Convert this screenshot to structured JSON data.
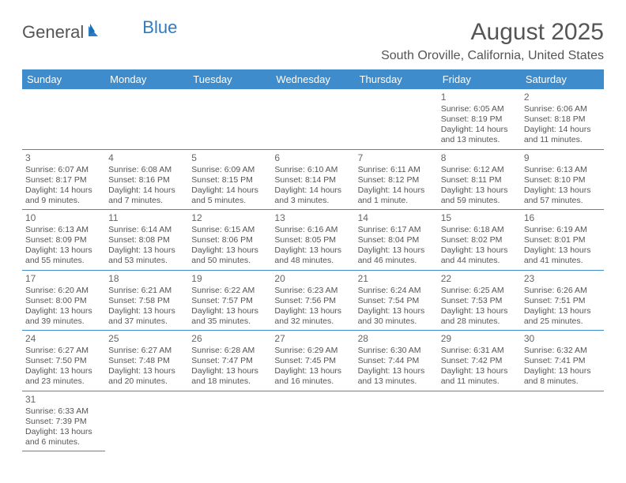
{
  "logo": {
    "part1": "General",
    "part2": "Blue"
  },
  "title": "August 2025",
  "location": "South Oroville, California, United States",
  "headers": [
    "Sunday",
    "Monday",
    "Tuesday",
    "Wednesday",
    "Thursday",
    "Friday",
    "Saturday"
  ],
  "colors": {
    "header_bg": "#3f8ccc",
    "header_text": "#ffffff",
    "border": "#3f8ccc",
    "text": "#555555",
    "logo_blue": "#2f7ac0"
  },
  "weeks": [
    [
      null,
      null,
      null,
      null,
      null,
      {
        "n": "1",
        "sr": "Sunrise: 6:05 AM",
        "ss": "Sunset: 8:19 PM",
        "d1": "Daylight: 14 hours",
        "d2": "and 13 minutes."
      },
      {
        "n": "2",
        "sr": "Sunrise: 6:06 AM",
        "ss": "Sunset: 8:18 PM",
        "d1": "Daylight: 14 hours",
        "d2": "and 11 minutes."
      }
    ],
    [
      {
        "n": "3",
        "sr": "Sunrise: 6:07 AM",
        "ss": "Sunset: 8:17 PM",
        "d1": "Daylight: 14 hours",
        "d2": "and 9 minutes."
      },
      {
        "n": "4",
        "sr": "Sunrise: 6:08 AM",
        "ss": "Sunset: 8:16 PM",
        "d1": "Daylight: 14 hours",
        "d2": "and 7 minutes."
      },
      {
        "n": "5",
        "sr": "Sunrise: 6:09 AM",
        "ss": "Sunset: 8:15 PM",
        "d1": "Daylight: 14 hours",
        "d2": "and 5 minutes."
      },
      {
        "n": "6",
        "sr": "Sunrise: 6:10 AM",
        "ss": "Sunset: 8:14 PM",
        "d1": "Daylight: 14 hours",
        "d2": "and 3 minutes."
      },
      {
        "n": "7",
        "sr": "Sunrise: 6:11 AM",
        "ss": "Sunset: 8:12 PM",
        "d1": "Daylight: 14 hours",
        "d2": "and 1 minute."
      },
      {
        "n": "8",
        "sr": "Sunrise: 6:12 AM",
        "ss": "Sunset: 8:11 PM",
        "d1": "Daylight: 13 hours",
        "d2": "and 59 minutes."
      },
      {
        "n": "9",
        "sr": "Sunrise: 6:13 AM",
        "ss": "Sunset: 8:10 PM",
        "d1": "Daylight: 13 hours",
        "d2": "and 57 minutes."
      }
    ],
    [
      {
        "n": "10",
        "sr": "Sunrise: 6:13 AM",
        "ss": "Sunset: 8:09 PM",
        "d1": "Daylight: 13 hours",
        "d2": "and 55 minutes."
      },
      {
        "n": "11",
        "sr": "Sunrise: 6:14 AM",
        "ss": "Sunset: 8:08 PM",
        "d1": "Daylight: 13 hours",
        "d2": "and 53 minutes."
      },
      {
        "n": "12",
        "sr": "Sunrise: 6:15 AM",
        "ss": "Sunset: 8:06 PM",
        "d1": "Daylight: 13 hours",
        "d2": "and 50 minutes."
      },
      {
        "n": "13",
        "sr": "Sunrise: 6:16 AM",
        "ss": "Sunset: 8:05 PM",
        "d1": "Daylight: 13 hours",
        "d2": "and 48 minutes."
      },
      {
        "n": "14",
        "sr": "Sunrise: 6:17 AM",
        "ss": "Sunset: 8:04 PM",
        "d1": "Daylight: 13 hours",
        "d2": "and 46 minutes."
      },
      {
        "n": "15",
        "sr": "Sunrise: 6:18 AM",
        "ss": "Sunset: 8:02 PM",
        "d1": "Daylight: 13 hours",
        "d2": "and 44 minutes."
      },
      {
        "n": "16",
        "sr": "Sunrise: 6:19 AM",
        "ss": "Sunset: 8:01 PM",
        "d1": "Daylight: 13 hours",
        "d2": "and 41 minutes."
      }
    ],
    [
      {
        "n": "17",
        "sr": "Sunrise: 6:20 AM",
        "ss": "Sunset: 8:00 PM",
        "d1": "Daylight: 13 hours",
        "d2": "and 39 minutes."
      },
      {
        "n": "18",
        "sr": "Sunrise: 6:21 AM",
        "ss": "Sunset: 7:58 PM",
        "d1": "Daylight: 13 hours",
        "d2": "and 37 minutes."
      },
      {
        "n": "19",
        "sr": "Sunrise: 6:22 AM",
        "ss": "Sunset: 7:57 PM",
        "d1": "Daylight: 13 hours",
        "d2": "and 35 minutes."
      },
      {
        "n": "20",
        "sr": "Sunrise: 6:23 AM",
        "ss": "Sunset: 7:56 PM",
        "d1": "Daylight: 13 hours",
        "d2": "and 32 minutes."
      },
      {
        "n": "21",
        "sr": "Sunrise: 6:24 AM",
        "ss": "Sunset: 7:54 PM",
        "d1": "Daylight: 13 hours",
        "d2": "and 30 minutes."
      },
      {
        "n": "22",
        "sr": "Sunrise: 6:25 AM",
        "ss": "Sunset: 7:53 PM",
        "d1": "Daylight: 13 hours",
        "d2": "and 28 minutes."
      },
      {
        "n": "23",
        "sr": "Sunrise: 6:26 AM",
        "ss": "Sunset: 7:51 PM",
        "d1": "Daylight: 13 hours",
        "d2": "and 25 minutes."
      }
    ],
    [
      {
        "n": "24",
        "sr": "Sunrise: 6:27 AM",
        "ss": "Sunset: 7:50 PM",
        "d1": "Daylight: 13 hours",
        "d2": "and 23 minutes."
      },
      {
        "n": "25",
        "sr": "Sunrise: 6:27 AM",
        "ss": "Sunset: 7:48 PM",
        "d1": "Daylight: 13 hours",
        "d2": "and 20 minutes."
      },
      {
        "n": "26",
        "sr": "Sunrise: 6:28 AM",
        "ss": "Sunset: 7:47 PM",
        "d1": "Daylight: 13 hours",
        "d2": "and 18 minutes."
      },
      {
        "n": "27",
        "sr": "Sunrise: 6:29 AM",
        "ss": "Sunset: 7:45 PM",
        "d1": "Daylight: 13 hours",
        "d2": "and 16 minutes."
      },
      {
        "n": "28",
        "sr": "Sunrise: 6:30 AM",
        "ss": "Sunset: 7:44 PM",
        "d1": "Daylight: 13 hours",
        "d2": "and 13 minutes."
      },
      {
        "n": "29",
        "sr": "Sunrise: 6:31 AM",
        "ss": "Sunset: 7:42 PM",
        "d1": "Daylight: 13 hours",
        "d2": "and 11 minutes."
      },
      {
        "n": "30",
        "sr": "Sunrise: 6:32 AM",
        "ss": "Sunset: 7:41 PM",
        "d1": "Daylight: 13 hours",
        "d2": "and 8 minutes."
      }
    ],
    [
      {
        "n": "31",
        "sr": "Sunrise: 6:33 AM",
        "ss": "Sunset: 7:39 PM",
        "d1": "Daylight: 13 hours",
        "d2": "and 6 minutes."
      },
      null,
      null,
      null,
      null,
      null,
      null
    ]
  ]
}
